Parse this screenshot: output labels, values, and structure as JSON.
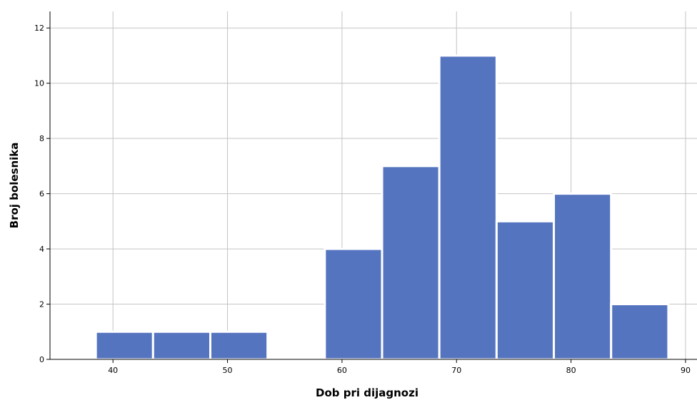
{
  "chart_data": {
    "type": "bar",
    "title": "",
    "xlabel": "Dob pri dijagnozi",
    "ylabel": "Broj bolesnika",
    "bin_width": 5,
    "bins": [
      {
        "start": 38.5,
        "end": 43.5,
        "count": 1
      },
      {
        "start": 43.5,
        "end": 48.5,
        "count": 1
      },
      {
        "start": 48.5,
        "end": 53.5,
        "count": 1
      },
      {
        "start": 58.5,
        "end": 63.5,
        "count": 4
      },
      {
        "start": 63.5,
        "end": 68.5,
        "count": 7
      },
      {
        "start": 68.5,
        "end": 73.5,
        "count": 11
      },
      {
        "start": 73.5,
        "end": 78.5,
        "count": 5
      },
      {
        "start": 78.5,
        "end": 83.5,
        "count": 6
      },
      {
        "start": 83.5,
        "end": 88.5,
        "count": 2
      }
    ],
    "xlim": [
      34.5,
      91
    ],
    "ylim": [
      0,
      12.6
    ],
    "x_ticks": [
      40,
      50,
      60,
      70,
      80,
      90
    ],
    "y_ticks": [
      0,
      2,
      4,
      6,
      8,
      10,
      12
    ],
    "grid": true,
    "bar_color": "#5574c0",
    "grid_color": "#c4c4c4"
  }
}
